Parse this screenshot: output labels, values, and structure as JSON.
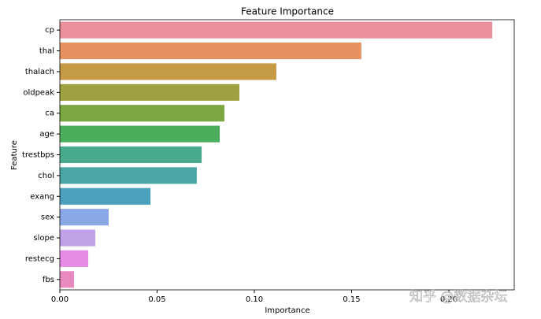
{
  "chart_data": {
    "type": "barh",
    "title": "Feature Importance",
    "x_label": "Importance",
    "y_label": "Feature",
    "categories": [
      "cp",
      "thal",
      "thalach",
      "oldpeak",
      "ca",
      "age",
      "trestbps",
      "chol",
      "exang",
      "sex",
      "slope",
      "restecg",
      "fbs"
    ],
    "values": [
      0.2223,
      0.155,
      0.1113,
      0.0923,
      0.0846,
      0.0822,
      0.0729,
      0.0704,
      0.0466,
      0.0251,
      0.0182,
      0.0146,
      0.0073
    ],
    "colors": [
      "#e9909c",
      "#e6915f",
      "#c59b46",
      "#9ea13f",
      "#7ba742",
      "#4cae5c",
      "#48aa8c",
      "#4aa6a4",
      "#4ba1bd",
      "#8aa8e6",
      "#c0a1e8",
      "#e88be6",
      "#e889c0"
    ],
    "xlim": [
      0,
      0.2336
    ],
    "xticks": [
      {
        "value": 0,
        "label": "0.00"
      },
      {
        "value": 0.05,
        "label": "0.05"
      },
      {
        "value": 0.1,
        "label": "0.10"
      },
      {
        "value": 0.15,
        "label": "0.15"
      },
      {
        "value": 0.2,
        "label": "0.20"
      }
    ],
    "watermark": "知乎 @数据杂坛"
  }
}
